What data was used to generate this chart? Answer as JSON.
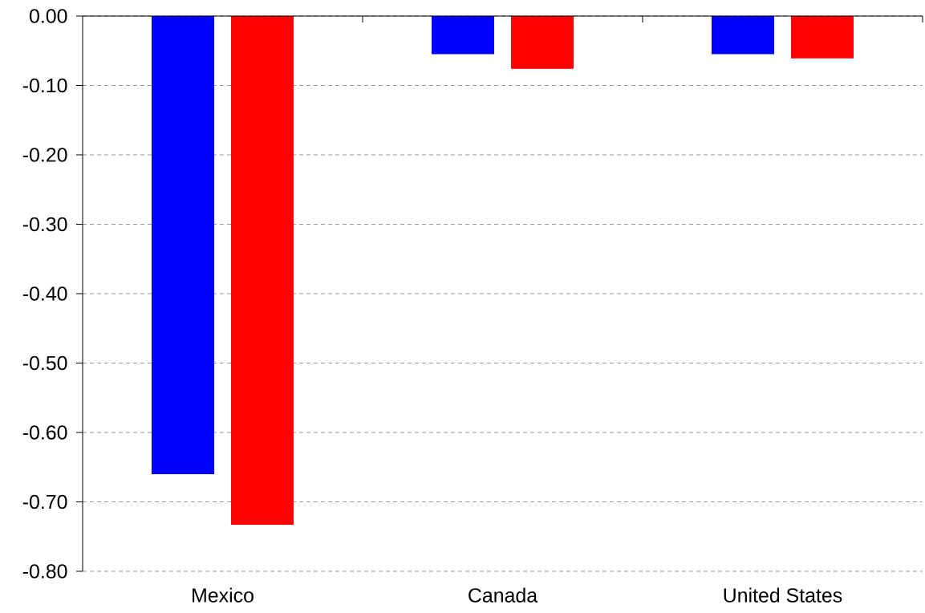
{
  "chart_data": {
    "type": "bar",
    "categories": [
      "Mexico",
      "Canada",
      "United States"
    ],
    "series": [
      {
        "color": "#0000ff",
        "values": [
          -0.66,
          -0.055,
          -0.055
        ]
      },
      {
        "color": "#ff0000",
        "values": [
          -0.733,
          -0.076,
          -0.061
        ]
      }
    ],
    "ylim": [
      -0.8,
      0
    ],
    "yticks": [
      {
        "value": 0,
        "label": "0.00"
      },
      {
        "value": -0.1,
        "label": "-0.10"
      },
      {
        "value": -0.2,
        "label": "-0.20"
      },
      {
        "value": -0.3,
        "label": "-0.30"
      },
      {
        "value": -0.4,
        "label": "-0.40"
      },
      {
        "value": -0.5,
        "label": "-0.50"
      },
      {
        "value": -0.6,
        "label": "-0.60"
      },
      {
        "value": -0.7,
        "label": "-0.70"
      },
      {
        "value": -0.8,
        "label": "-0.80"
      }
    ],
    "grid": "y"
  }
}
